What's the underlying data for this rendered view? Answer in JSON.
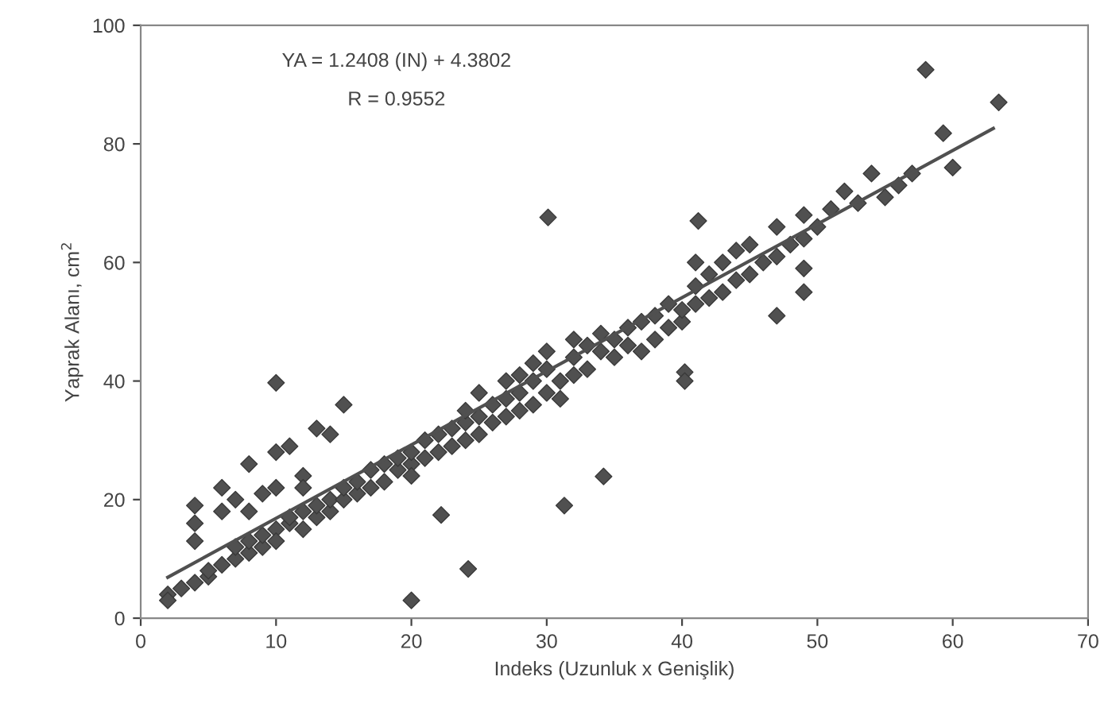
{
  "chart_data": {
    "type": "scatter",
    "xlabel": "Indeks (Uzunluk x Genişlik)",
    "ylabel": "Yaprak Alanı, cm$^{2}$",
    "annotations": [
      "YA = 1.2408 (IN) + 4.3802",
      "R = 0.9552"
    ],
    "xlim": [
      0,
      70
    ],
    "ylim": [
      0,
      100
    ],
    "xticks": [
      0,
      10,
      20,
      30,
      40,
      50,
      60,
      70
    ],
    "yticks": [
      0,
      20,
      40,
      60,
      80,
      100
    ],
    "grid": false,
    "legend": false,
    "marker": "diamond",
    "series": [
      {
        "color": "#505050",
        "x": [
          2,
          2,
          3,
          4,
          5,
          5,
          6,
          7,
          7,
          8,
          8,
          9,
          9,
          10,
          10,
          11,
          11,
          12,
          12,
          13,
          13,
          14,
          14,
          15,
          15,
          16,
          16,
          17,
          17,
          18,
          18,
          19,
          19,
          20,
          20,
          20,
          21,
          21,
          22,
          22,
          23,
          23,
          24,
          24,
          24,
          25,
          25,
          25,
          26,
          26,
          27,
          27,
          27,
          28,
          28,
          28,
          29,
          29,
          29,
          30,
          30,
          30,
          31,
          31,
          32,
          32,
          32,
          33,
          33,
          34,
          34,
          35,
          35,
          36,
          36,
          37,
          37,
          38,
          38,
          39,
          39,
          40,
          40,
          41,
          41,
          41,
          42,
          42,
          43,
          43,
          44,
          44,
          45,
          45,
          46,
          47,
          47,
          48,
          49,
          49,
          50,
          51,
          52,
          53,
          54,
          55,
          56,
          57,
          10,
          20,
          24.2,
          22.2,
          34.2,
          31.3,
          30.1,
          58,
          59.3,
          63.4,
          60,
          41.2,
          40.2,
          40.2,
          47,
          49,
          49,
          4,
          4,
          4,
          6,
          6,
          7,
          8,
          9,
          10,
          10,
          11,
          12,
          13,
          14,
          15,
          8,
          12
        ],
        "values": [
          4,
          3,
          5,
          6,
          7,
          8,
          9,
          10,
          12,
          11,
          13,
          12,
          14,
          15,
          13,
          16,
          17,
          15,
          18,
          17,
          19,
          18,
          20,
          20,
          22,
          21,
          23,
          22,
          25,
          23,
          26,
          25,
          27,
          26,
          28,
          24,
          27,
          30,
          28,
          31,
          29,
          32,
          30,
          33,
          35,
          31,
          34,
          38,
          33,
          36,
          34,
          37,
          40,
          35,
          38,
          41,
          36,
          40,
          43,
          38,
          42,
          45,
          37,
          40,
          41,
          44,
          47,
          42,
          46,
          45,
          48,
          44,
          47,
          46,
          49,
          45,
          50,
          47,
          51,
          49,
          53,
          50,
          52,
          53,
          56,
          60,
          54,
          58,
          55,
          60,
          57,
          62,
          58,
          63,
          60,
          61,
          66,
          63,
          64,
          68,
          66,
          69,
          72,
          70,
          75,
          71,
          73,
          75,
          39.7,
          3,
          8.3,
          17.4,
          23.9,
          19,
          67.6,
          92.5,
          81.8,
          87,
          76,
          67,
          41.5,
          40,
          51,
          55,
          59,
          16,
          19,
          13,
          18,
          22,
          20,
          26,
          21,
          22,
          28,
          29,
          24,
          32,
          31,
          36,
          18,
          22
        ]
      },
      {
        "color": "#505050",
        "type": "line",
        "marker": "none",
        "x": [
          2,
          63
        ],
        "values": [
          6.9,
          82.6
        ]
      }
    ]
  }
}
